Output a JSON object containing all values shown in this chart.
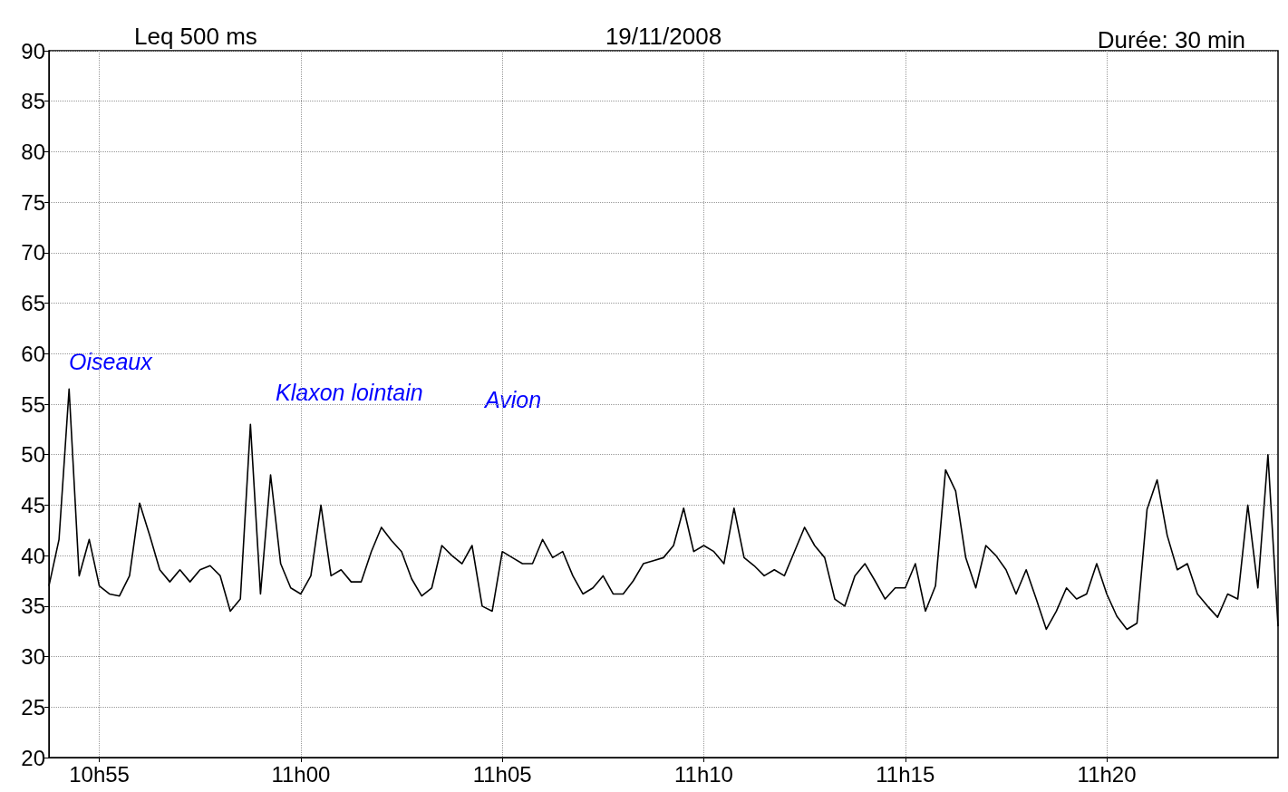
{
  "chart_data": {
    "type": "line",
    "title": "19/11/2008",
    "ylabel": "Leq 500 ms",
    "annotations": [
      "Durée: 30 min",
      "Oiseaux",
      "Klaxon lointain",
      "Avion"
    ],
    "categories": [
      null,
      null,
      null,
      null,
      null,
      "10h55",
      null,
      null,
      null,
      null,
      null,
      null,
      null,
      null,
      null,
      null,
      null,
      null,
      null,
      null,
      null,
      null,
      null,
      null,
      null,
      "11h00",
      null,
      null,
      null,
      null,
      null,
      null,
      null,
      null,
      null,
      null,
      null,
      null,
      null,
      null,
      null,
      null,
      null,
      null,
      null,
      "11h05",
      null,
      null,
      null,
      null,
      null,
      null,
      null,
      null,
      null,
      null,
      null,
      null,
      null,
      null,
      null,
      null,
      null,
      null,
      null,
      "11h10",
      null,
      null,
      null,
      null,
      null,
      null,
      null,
      null,
      null,
      null,
      null,
      null,
      null,
      null,
      null,
      null,
      null,
      null,
      null,
      "11h15",
      null,
      null,
      null,
      null,
      null,
      null,
      null,
      null,
      null,
      null,
      null,
      null,
      null,
      null,
      null,
      null,
      null,
      null,
      null,
      "11h20",
      null,
      null,
      null,
      null,
      null,
      null,
      null,
      null,
      null,
      null,
      null,
      null,
      null,
      null,
      null,
      null,
      null
    ],
    "series": [
      {
        "color": "#000000",
        "values": [
          37,
          41.6,
          56.5,
          38,
          41.6,
          37,
          36.2,
          36,
          38,
          45.2,
          42,
          38.6,
          37.4,
          38.6,
          37.4,
          38.6,
          39,
          38,
          34.5,
          35.7,
          53,
          36.2,
          48,
          39.2,
          36.8,
          36.2,
          38,
          45,
          38,
          38.6,
          37.4,
          37.4,
          40.4,
          42.8,
          41.5,
          40.4,
          37.7,
          36,
          36.8,
          41,
          40,
          39.2,
          41,
          35,
          34.5,
          40.4,
          39.8,
          39.2,
          39.2,
          41.6,
          39.8,
          40.4,
          38,
          36.2,
          36.8,
          38,
          36.2,
          36.2,
          37.5,
          39.2,
          39.5,
          39.8,
          41,
          44.7,
          40.4,
          41,
          40.4,
          39.2,
          44.7,
          39.8,
          39,
          38,
          38.6,
          38,
          40.4,
          42.8,
          41,
          39.8,
          35.7,
          35,
          38,
          39.2,
          37.5,
          35.7,
          36.8,
          36.8,
          39.2,
          34.5,
          37,
          48.5,
          46.4,
          39.8,
          36.8,
          41,
          40,
          38.6,
          36.2,
          38.6,
          35.7,
          32.7,
          34.5,
          36.8,
          35.7,
          36.2,
          39.2,
          36.2,
          34,
          32.7,
          33.3,
          44.6,
          47.5,
          42,
          38.6,
          39.2,
          36.2,
          35,
          33.9,
          36.2,
          35.7,
          45,
          36.8,
          50,
          33
        ]
      }
    ],
    "ylim": [
      20,
      90
    ],
    "yticks": [
      20,
      25,
      30,
      35,
      40,
      45,
      50,
      55,
      60,
      65,
      70,
      75,
      80,
      85,
      90
    ],
    "grid": true,
    "line_style": "solid"
  }
}
